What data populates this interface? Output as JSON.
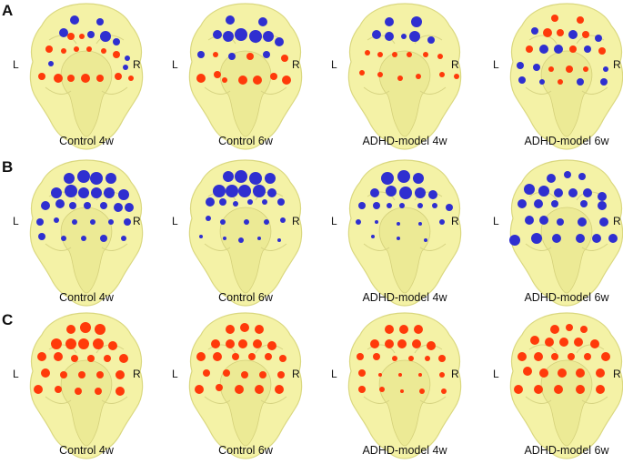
{
  "figure": {
    "rows": [
      {
        "letter": "A",
        "panels": [
          {
            "caption": "Control 4w",
            "left_label": "L",
            "right_label": "R"
          },
          {
            "caption": "Control 6w",
            "left_label": "L",
            "right_label": "R"
          },
          {
            "caption": "ADHD-model 4w",
            "left_label": "L",
            "right_label": "R"
          },
          {
            "caption": "ADHD-model 6w",
            "left_label": "L",
            "right_label": "R"
          }
        ]
      },
      {
        "letter": "B",
        "panels": [
          {
            "caption": "Control 4w",
            "left_label": "L",
            "right_label": "R"
          },
          {
            "caption": "Control 6w",
            "left_label": "L",
            "right_label": "R"
          },
          {
            "caption": "ADHD-model 4w",
            "left_label": "L",
            "right_label": "R"
          },
          {
            "caption": "ADHD-model 6w",
            "left_label": "L",
            "right_label": "R"
          }
        ]
      },
      {
        "letter": "C",
        "panels": [
          {
            "caption": "Control 4w",
            "left_label": "L",
            "right_label": "R"
          },
          {
            "caption": "Control 6w",
            "left_label": "L",
            "right_label": "R"
          },
          {
            "caption": "ADHD-model 4w",
            "left_label": "L",
            "right_label": "R"
          },
          {
            "caption": "ADHD-model 6w",
            "left_label": "L",
            "right_label": "R"
          }
        ]
      }
    ],
    "colors": {
      "brain_fill": "#f4f2a2",
      "brain_stroke": "#d9d67a",
      "node_blue": "#2f2fd0",
      "node_red": "#ff3a0a"
    }
  }
}
